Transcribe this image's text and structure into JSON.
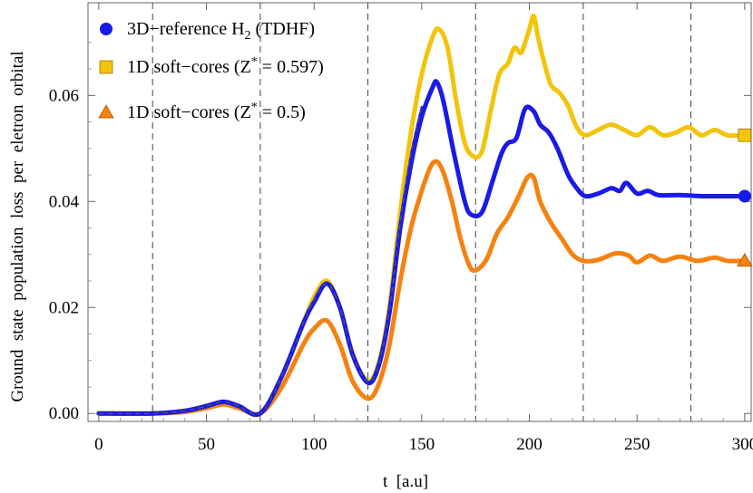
{
  "chart_data": {
    "type": "line",
    "title": "",
    "xlabel": "t  [a.u]",
    "ylabel": "Ground  state  population  loss  per  eletron  orbital",
    "xlim": [
      -5,
      303
    ],
    "ylim": [
      -0.0015,
      0.0775
    ],
    "xticks": [
      0,
      50,
      100,
      150,
      200,
      250,
      300
    ],
    "xtick_labels": [
      "0",
      "50",
      "100",
      "150",
      "200",
      "250",
      "300"
    ],
    "yticks": [
      0.0,
      0.02,
      0.04,
      0.06
    ],
    "ytick_labels": [
      "0.00",
      "0.02",
      "0.04",
      "0.06"
    ],
    "vlines": [
      25,
      75,
      125,
      175,
      225,
      275
    ],
    "legend_position": "top-left",
    "colors": {
      "blue": "#1a1ae6",
      "yellow": "#f2c40c",
      "orange": "#f5820f",
      "dashed": "#555555"
    },
    "legend": [
      {
        "key": "blue",
        "marker": "circle",
        "label_main": "3D−reference H",
        "label_sub": "2",
        "label_tail": " (TDHF)"
      },
      {
        "key": "yellow",
        "marker": "square",
        "label_main": "1D soft−cores (Z",
        "label_sup": "*",
        "label_tail": " = 0.597)"
      },
      {
        "key": "orange",
        "marker": "triangle",
        "label_main": "1D soft−cores (Z",
        "label_sup": "*",
        "label_tail": " = 0.5)"
      }
    ],
    "series": [
      {
        "name": "3D-reference H2 (TDHF)",
        "key": "blue",
        "end_marker": "circle",
        "x": [
          0,
          25,
          40,
          50,
          58,
          65,
          75,
          85,
          95,
          100,
          106,
          112,
          118,
          125,
          130,
          135,
          140,
          145,
          150,
          155,
          157,
          160,
          165,
          170,
          173,
          178,
          183,
          187,
          190,
          194,
          198,
          202,
          205,
          209,
          213,
          218,
          222,
          226,
          232,
          238,
          242,
          245,
          250,
          255,
          260,
          270,
          280,
          290,
          300
        ],
        "y": [
          0.0,
          0.0,
          0.0005,
          0.0014,
          0.0022,
          0.0014,
          0.0,
          0.007,
          0.017,
          0.021,
          0.0245,
          0.02,
          0.011,
          0.0058,
          0.009,
          0.019,
          0.035,
          0.047,
          0.056,
          0.0615,
          0.0625,
          0.059,
          0.049,
          0.04,
          0.0375,
          0.038,
          0.044,
          0.049,
          0.051,
          0.052,
          0.0575,
          0.057,
          0.0545,
          0.053,
          0.05,
          0.045,
          0.0425,
          0.041,
          0.0415,
          0.0425,
          0.042,
          0.0435,
          0.0415,
          0.042,
          0.0412,
          0.0412,
          0.041,
          0.041,
          0.041
        ]
      },
      {
        "name": "1D soft-cores (Z* = 0.597)",
        "key": "yellow",
        "end_marker": "square",
        "x": [
          0,
          25,
          40,
          50,
          58,
          65,
          75,
          85,
          95,
          100,
          106,
          112,
          118,
          125,
          130,
          135,
          140,
          145,
          150,
          155,
          158,
          162,
          166,
          170,
          174,
          178,
          182,
          186,
          190,
          193,
          196,
          198,
          200,
          202,
          204,
          207,
          210,
          214,
          218,
          222,
          226,
          232,
          238,
          244,
          250,
          256,
          262,
          268,
          274,
          280,
          286,
          292,
          300
        ],
        "y": [
          0.0,
          0.0,
          0.0005,
          0.0014,
          0.0022,
          0.0014,
          0.0,
          0.007,
          0.017,
          0.022,
          0.025,
          0.02,
          0.011,
          0.0062,
          0.0095,
          0.02,
          0.038,
          0.053,
          0.064,
          0.071,
          0.0725,
          0.069,
          0.059,
          0.051,
          0.0485,
          0.0495,
          0.057,
          0.064,
          0.066,
          0.069,
          0.068,
          0.07,
          0.0725,
          0.075,
          0.071,
          0.066,
          0.062,
          0.0605,
          0.058,
          0.054,
          0.0525,
          0.0535,
          0.0545,
          0.0535,
          0.0525,
          0.054,
          0.0525,
          0.053,
          0.054,
          0.0525,
          0.0535,
          0.0525,
          0.0525
        ]
      },
      {
        "name": "1D soft-cores (Z* = 0.5)",
        "key": "orange",
        "end_marker": "triangle",
        "x": [
          0,
          25,
          40,
          50,
          58,
          65,
          75,
          85,
          95,
          100,
          106,
          112,
          118,
          125,
          130,
          135,
          140,
          145,
          150,
          154,
          157,
          160,
          164,
          168,
          172,
          175,
          180,
          185,
          190,
          195,
          199,
          202,
          205,
          210,
          215,
          220,
          225,
          232,
          240,
          246,
          250,
          256,
          262,
          270,
          278,
          286,
          292,
          300
        ],
        "y": [
          0.0,
          0.0,
          0.0003,
          0.001,
          0.0017,
          0.001,
          0.0,
          0.005,
          0.013,
          0.016,
          0.0175,
          0.013,
          0.006,
          0.0028,
          0.0055,
          0.013,
          0.025,
          0.035,
          0.042,
          0.0465,
          0.0475,
          0.0455,
          0.04,
          0.033,
          0.028,
          0.027,
          0.029,
          0.034,
          0.037,
          0.041,
          0.0445,
          0.0445,
          0.04,
          0.036,
          0.033,
          0.03,
          0.0288,
          0.029,
          0.0302,
          0.0298,
          0.0285,
          0.0298,
          0.0288,
          0.0296,
          0.0288,
          0.0294,
          0.0288,
          0.0288
        ]
      },
      {
        "name": "TDHF thin overlay",
        "key": "blue",
        "style": "thin",
        "x": [
          0,
          25,
          40,
          50,
          58,
          65,
          75,
          85,
          95,
          100,
          106,
          112,
          118,
          125,
          130,
          135,
          140,
          145,
          150
        ],
        "y": [
          0.0,
          0.0,
          0.0005,
          0.0014,
          0.0022,
          0.0014,
          0.0,
          0.007,
          0.017,
          0.0215,
          0.0245,
          0.02,
          0.011,
          0.006,
          0.0092,
          0.0195,
          0.036,
          0.049,
          0.058
        ]
      },
      {
        "name": "dashed overlay",
        "key": "dashed",
        "style": "dashed",
        "x": [
          0,
          25,
          40,
          50,
          58,
          65,
          75,
          85,
          95,
          100,
          106,
          112,
          118,
          125,
          130,
          135,
          140,
          145,
          150
        ],
        "y": [
          0.0,
          0.0,
          0.0005,
          0.0014,
          0.0022,
          0.0014,
          0.0,
          0.007,
          0.017,
          0.0215,
          0.0245,
          0.02,
          0.011,
          0.006,
          0.0092,
          0.0195,
          0.036,
          0.049,
          0.058
        ]
      }
    ]
  }
}
